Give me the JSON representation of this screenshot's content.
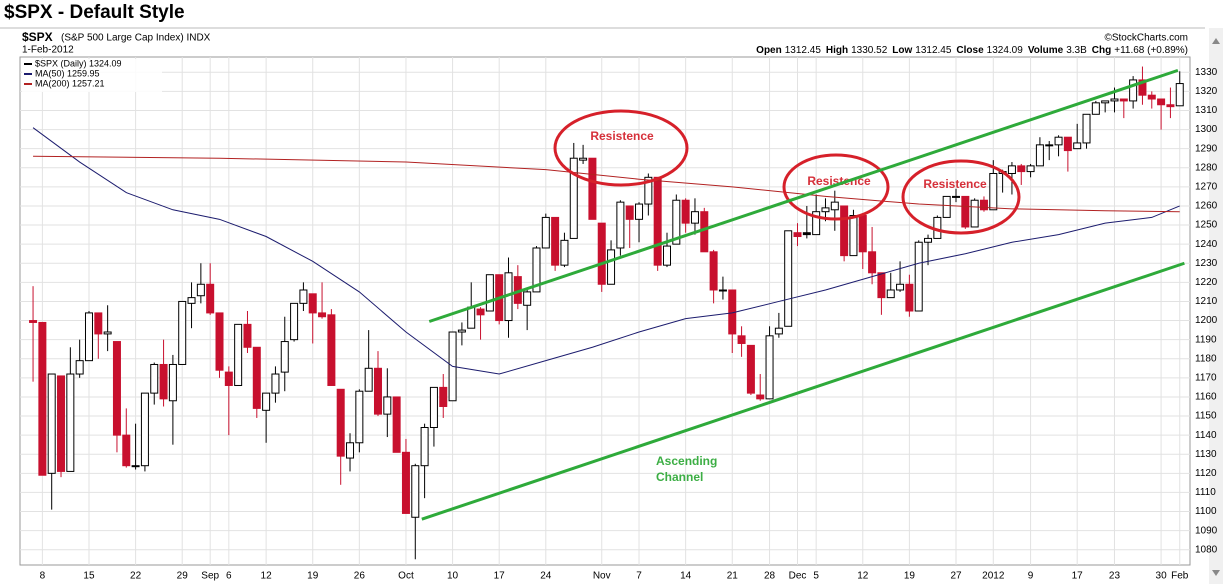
{
  "page_title": "$SPX - Default Style",
  "chart_data": {
    "type": "candlestick",
    "symbol": "$SPX",
    "name": "(S&P 500 Large Cap Index) INDX",
    "date": "1-Feb-2012",
    "copyright": "©StockCharts.com",
    "quote": [
      {
        "label": "Open",
        "value": "1312.45"
      },
      {
        "label": "High",
        "value": "1330.52"
      },
      {
        "label": "Low",
        "value": "1312.45"
      },
      {
        "label": "Close",
        "value": "1324.09"
      },
      {
        "label": "Volume",
        "value": "3.3B"
      },
      {
        "label": "Chg",
        "value": "+11.68 (+0.89%)"
      }
    ],
    "legend": [
      "$SPX (Daily) 1324.09",
      "MA(50) 1259.95",
      "MA(200) 1257.21"
    ],
    "up_color": "#000000",
    "down_color": "#c8102e",
    "open": [
      1200,
      1199,
      1120,
      1171,
      1121,
      1172,
      1179,
      1204,
      1193,
      1189,
      1140,
      1124,
      1124,
      1162,
      1177,
      1158,
      1177,
      1209,
      1213,
      1219,
      1204,
      1173,
      1166,
      1198,
      1186,
      1153,
      1162,
      1173,
      1190,
      1209,
      1214,
      1204,
      1203,
      1164,
      1128,
      1136,
      1163,
      1175,
      1151,
      1160,
      1131,
      1097,
      1124,
      1144,
      1165,
      1158,
      1194,
      1196,
      1206,
      1205,
      1224,
      1200,
      1223,
      1208,
      1215,
      1238,
      1254,
      1229,
      1243,
      1284,
      1285,
      1251,
      1219,
      1238,
      1260,
      1253,
      1261,
      1275,
      1229,
      1240,
      1263,
      1251,
      1257,
      1236,
      1216,
      1216,
      1192,
      1187,
      1161,
      1159,
      1193,
      1197,
      1246,
      1246,
      1245,
      1257,
      1258,
      1260,
      1234,
      1255,
      1236,
      1225,
      1212,
      1216,
      1219,
      1205,
      1241,
      1243,
      1254,
      1265,
      1265,
      1249,
      1263,
      1258,
      1277,
      1277,
      1281,
      1278,
      1281,
      1292,
      1292,
      1296,
      1290,
      1293,
      1308,
      1314,
      1315,
      1316,
      1315,
      1326,
      1318,
      1316,
      1313,
      1312.45
    ],
    "high": [
      1218,
      1199,
      1172,
      1171,
      1186,
      1190,
      1205,
      1204,
      1208,
      1189,
      1154,
      1146,
      1162,
      1178,
      1190,
      1182,
      1210,
      1220,
      1230,
      1230,
      1204,
      1176,
      1198,
      1205,
      1186,
      1162,
      1176,
      1202,
      1209,
      1220,
      1214,
      1220,
      1206,
      1164,
      1141,
      1164,
      1195,
      1184,
      1175,
      1160,
      1138,
      1125,
      1146,
      1165,
      1172,
      1194,
      1199,
      1220,
      1207,
      1224,
      1224,
      1233,
      1229,
      1216,
      1239,
      1256,
      1254,
      1246,
      1293,
      1292,
      1285,
      1251,
      1242,
      1263,
      1260,
      1262,
      1277,
      1275,
      1246,
      1266,
      1264,
      1264,
      1259,
      1237,
      1223,
      1216,
      1197,
      1187,
      1172,
      1197,
      1204,
      1247,
      1251,
      1260,
      1266,
      1264,
      1268,
      1260,
      1258,
      1255,
      1249,
      1225,
      1225,
      1231,
      1224,
      1242,
      1245,
      1255,
      1265,
      1269,
      1265,
      1264,
      1265,
      1284,
      1279,
      1283,
      1282,
      1282,
      1296,
      1294,
      1297,
      1296,
      1303,
      1308,
      1315,
      1315,
      1322,
      1316,
      1328,
      1333,
      1320,
      1316,
      1322,
      1330.52
    ],
    "low": [
      1168,
      1119,
      1101,
      1118,
      1121,
      1170,
      1179,
      1180,
      1184,
      1131,
      1123,
      1122,
      1121,
      1156,
      1155,
      1135,
      1177,
      1196,
      1209,
      1203,
      1170,
      1140,
      1166,
      1183,
      1149,
      1136,
      1157,
      1163,
      1189,
      1205,
      1188,
      1201,
      1166,
      1114,
      1121,
      1131,
      1163,
      1150,
      1139,
      1131,
      1099,
      1075,
      1107,
      1134,
      1149,
      1158,
      1187,
      1196,
      1190,
      1205,
      1198,
      1191,
      1206,
      1195,
      1215,
      1238,
      1226,
      1228,
      1243,
      1282,
      1253,
      1215,
      1219,
      1234,
      1238,
      1241,
      1255,
      1226,
      1228,
      1240,
      1246,
      1245,
      1236,
      1209,
      1211,
      1183,
      1181,
      1161,
      1158,
      1159,
      1191,
      1197,
      1239,
      1243,
      1245,
      1252,
      1247,
      1231,
      1234,
      1227,
      1219,
      1203,
      1212,
      1215,
      1202,
      1205,
      1229,
      1243,
      1254,
      1262,
      1248,
      1249,
      1257,
      1258,
      1267,
      1266,
      1271,
      1275,
      1281,
      1284,
      1286,
      1278,
      1290,
      1290,
      1308,
      1309,
      1309,
      1306,
      1311,
      1313,
      1311,
      1300,
      1306,
      1312.45
    ],
    "close": [
      1199,
      1119,
      1172,
      1121,
      1172,
      1179,
      1204,
      1193,
      1194,
      1140,
      1124,
      1124,
      1162,
      1177,
      1159,
      1177,
      1210,
      1212,
      1219,
      1204,
      1174,
      1166,
      1198,
      1186,
      1154,
      1162,
      1172,
      1189,
      1209,
      1216,
      1204,
      1202,
      1166,
      1129,
      1136,
      1163,
      1175,
      1151,
      1160,
      1131,
      1099,
      1124,
      1144,
      1165,
      1155,
      1194,
      1195,
      1207,
      1203,
      1224,
      1200,
      1225,
      1209,
      1215,
      1238,
      1254,
      1229,
      1242,
      1285,
      1285,
      1253,
      1219,
      1237,
      1262,
      1253,
      1261,
      1275,
      1229,
      1239,
      1263,
      1251,
      1257,
      1236,
      1216,
      1216,
      1193,
      1188,
      1162,
      1159,
      1192,
      1196,
      1247,
      1244,
      1245,
      1257,
      1259,
      1262,
      1234,
      1255,
      1236,
      1225,
      1212,
      1216,
      1219,
      1205,
      1241,
      1243,
      1254,
      1265,
      1265,
      1249,
      1263,
      1258,
      1277,
      1278,
      1281,
      1278,
      1281,
      1292,
      1292,
      1296,
      1289,
      1293,
      1308,
      1314,
      1315,
      1316,
      1315,
      1326,
      1318,
      1316,
      1313,
      1312,
      1324.09
    ],
    "series": [
      {
        "name": "MA(50)",
        "color": "#1c1c6e",
        "x": [
          0,
          5,
          10,
          15,
          20,
          25,
          30,
          35,
          40,
          45,
          50,
          55,
          60,
          65,
          70,
          75,
          80,
          85,
          90,
          95,
          100,
          105,
          110,
          115,
          120,
          123
        ],
        "values": [
          1301,
          1283,
          1267,
          1258,
          1253,
          1244,
          1231,
          1215,
          1194,
          1176,
          1172,
          1179,
          1186,
          1194,
          1201,
          1204,
          1210,
          1216,
          1223,
          1230,
          1235,
          1241,
          1245,
          1251,
          1254,
          1260
        ]
      },
      {
        "name": "MA(200)",
        "color": "#b22222",
        "x": [
          0,
          20,
          40,
          55,
          65,
          75,
          85,
          95,
          105,
          115,
          123
        ],
        "values": [
          1286,
          1285,
          1283,
          1279,
          1274,
          1270,
          1265,
          1261,
          1258.5,
          1257.5,
          1257
        ]
      }
    ],
    "trendlines": [
      {
        "x1": 42.5,
        "y1": 1199.5,
        "x2": 122.8,
        "y2": 1331,
        "color": "#2eaa3a"
      },
      {
        "x1": 41.7,
        "y1": 1096,
        "x2": 123.5,
        "y2": 1230,
        "color": "#2eaa3a"
      }
    ],
    "annotations": [
      "Resistence",
      "Resistence",
      "Resistence"
    ],
    "channel_label": [
      "Ascending",
      "Channel"
    ],
    "ylim": [
      1072,
      1338
    ],
    "yticks": [
      1080,
      1090,
      1100,
      1110,
      1120,
      1130,
      1140,
      1150,
      1160,
      1170,
      1180,
      1190,
      1200,
      1210,
      1220,
      1230,
      1240,
      1250,
      1260,
      1270,
      1280,
      1290,
      1300,
      1310,
      1320,
      1330
    ],
    "xlim": [
      -1.4,
      124.1
    ],
    "xticks": [
      {
        "value": 1,
        "label": "8"
      },
      {
        "value": 6,
        "label": "15"
      },
      {
        "value": 11,
        "label": "22"
      },
      {
        "value": 16,
        "label": "29"
      },
      {
        "value": 19,
        "label": "Sep"
      },
      {
        "value": 21,
        "label": "6"
      },
      {
        "value": 25,
        "label": "12"
      },
      {
        "value": 30,
        "label": "19"
      },
      {
        "value": 35,
        "label": "26"
      },
      {
        "value": 40,
        "label": "Oct"
      },
      {
        "value": 45,
        "label": "10"
      },
      {
        "value": 50,
        "label": "17"
      },
      {
        "value": 55,
        "label": "24"
      },
      {
        "value": 61,
        "label": "Nov"
      },
      {
        "value": 65,
        "label": "7"
      },
      {
        "value": 70,
        "label": "14"
      },
      {
        "value": 75,
        "label": "21"
      },
      {
        "value": 79,
        "label": "28"
      },
      {
        "value": 82,
        "label": "Dec"
      },
      {
        "value": 84,
        "label": "5"
      },
      {
        "value": 89,
        "label": "12"
      },
      {
        "value": 94,
        "label": "19"
      },
      {
        "value": 99,
        "label": "27"
      },
      {
        "value": 103,
        "label": "2012"
      },
      {
        "value": 107,
        "label": "9"
      },
      {
        "value": 112,
        "label": "17"
      },
      {
        "value": 116,
        "label": "23"
      },
      {
        "value": 121,
        "label": "30"
      },
      {
        "value": 123,
        "label": "Feb"
      }
    ],
    "grid": true
  }
}
